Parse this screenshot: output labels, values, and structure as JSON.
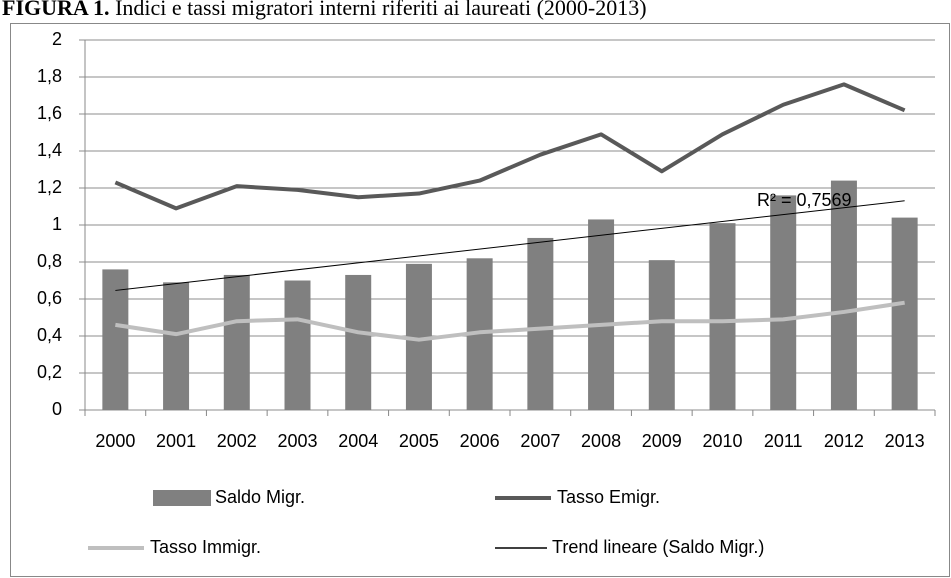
{
  "chart_data": {
    "type": "bar",
    "title_label": "FIGURA 1.",
    "title": "Indici e tassi migratori interni riferiti ai laureati (2000-2013)",
    "categories": [
      "2000",
      "2001",
      "2002",
      "2003",
      "2004",
      "2005",
      "2006",
      "2007",
      "2008",
      "2009",
      "2010",
      "2011",
      "2012",
      "2013"
    ],
    "series": [
      {
        "name": "Saldo Migr.",
        "type": "bar",
        "color": "#808080",
        "values": [
          0.76,
          0.69,
          0.73,
          0.7,
          0.73,
          0.79,
          0.82,
          0.93,
          1.03,
          0.81,
          1.01,
          1.16,
          1.24,
          1.04
        ]
      },
      {
        "name": "Tasso Emigr.",
        "type": "line",
        "color": "#595959",
        "values": [
          1.23,
          1.09,
          1.21,
          1.19,
          1.15,
          1.17,
          1.24,
          1.38,
          1.49,
          1.29,
          1.49,
          1.65,
          1.76,
          1.62
        ]
      },
      {
        "name": "Tasso Immigr.",
        "type": "line",
        "color": "#bfbfbf",
        "values": [
          0.46,
          0.41,
          0.48,
          0.49,
          0.42,
          0.38,
          0.42,
          0.44,
          0.46,
          0.48,
          0.48,
          0.49,
          0.53,
          0.58
        ]
      }
    ],
    "trend": {
      "name": "Trend lineare (Saldo Migr.)",
      "color": "#000000",
      "annotation": "R² = 0,7569"
    },
    "ylim": [
      0,
      2
    ],
    "yticks": [
      0,
      {
        "value": 0.2,
        "label": "0,2"
      },
      {
        "value": 0.4,
        "label": "0,4"
      },
      {
        "value": 0.6,
        "label": "0,6"
      },
      {
        "value": 0.8,
        "label": "0,8"
      },
      1,
      {
        "value": 1.2,
        "label": "1,2"
      },
      {
        "value": 1.4,
        "label": "1,4"
      },
      {
        "value": 1.6,
        "label": "1,6"
      },
      {
        "value": 1.8,
        "label": "1,8"
      },
      2
    ],
    "grid": true
  }
}
